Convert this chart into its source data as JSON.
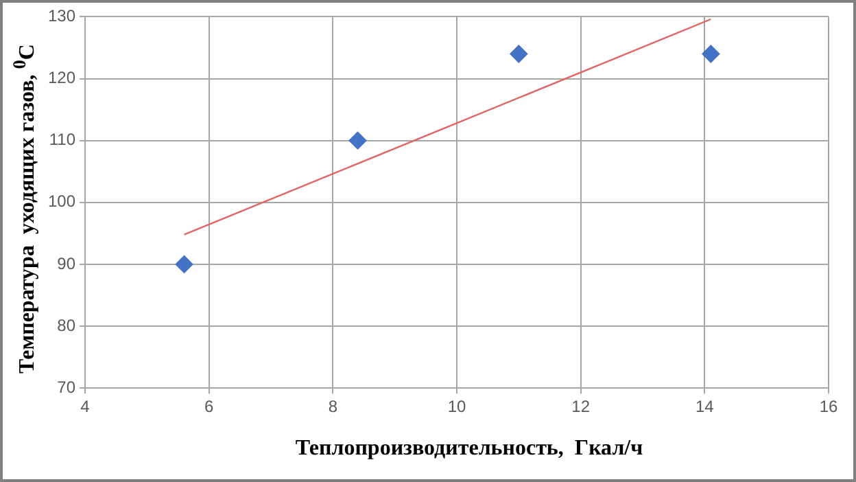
{
  "chart_data": {
    "type": "scatter",
    "xlabel": "Теплопроизводительность,  Гкал/ч",
    "ylabel": "Температура  уходящих газов, $^{0}$C",
    "series": [
      {
        "type": "scatter",
        "color": "#4472c4",
        "x": [
          5.6,
          8.4,
          11,
          14.1
        ],
        "values": [
          90,
          110,
          124,
          124
        ],
        "marker": "diamond"
      },
      {
        "type": "line",
        "color": "#e06666",
        "x": [
          5.6,
          14.1
        ],
        "values": [
          94.8,
          129.6
        ],
        "marker": "none",
        "line_style": "solid"
      }
    ],
    "xlim": [
      4,
      16
    ],
    "xticks": [
      4,
      6,
      8,
      10,
      12,
      14,
      16
    ],
    "ylim": [
      70,
      130
    ],
    "yticks": [
      70,
      80,
      90,
      100,
      110,
      120,
      130
    ],
    "grid": true,
    "legend": false
  }
}
